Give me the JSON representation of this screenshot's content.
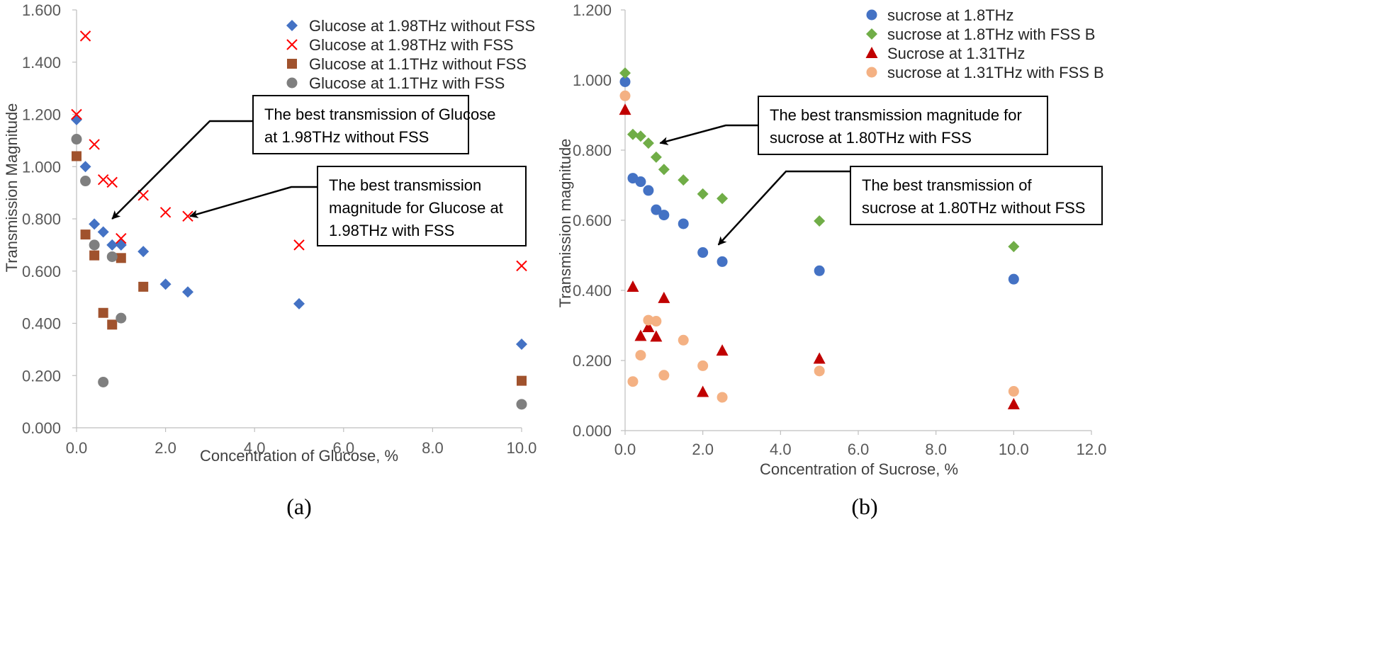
{
  "chart_data": [
    {
      "type": "scatter",
      "panel": "(a)",
      "xlabel": "Concentration of Glucose, %",
      "ylabel": "Transmission Magnitude",
      "xlim": [
        0,
        10
      ],
      "ylim": [
        0,
        1.6
      ],
      "x_ticks": [
        "0.0",
        "2.0",
        "4.0",
        "6.0",
        "8.0",
        "10.0"
      ],
      "y_ticks": [
        "0.000",
        "0.200",
        "0.400",
        "0.600",
        "0.800",
        "1.000",
        "1.200",
        "1.400",
        "1.600"
      ],
      "legend_position": "top-right",
      "series": [
        {
          "name": "Glucose at 1.98THz without FSS",
          "marker": "diamond",
          "color": "#4472c4",
          "points": [
            [
              0,
              1.18
            ],
            [
              0.2,
              1.0
            ],
            [
              0.4,
              0.78
            ],
            [
              0.6,
              0.75
            ],
            [
              0.8,
              0.7
            ],
            [
              1.0,
              0.7
            ],
            [
              1.5,
              0.675
            ],
            [
              2.0,
              0.55
            ],
            [
              2.5,
              0.52
            ],
            [
              5.0,
              0.475
            ],
            [
              10.0,
              0.32
            ]
          ]
        },
        {
          "name": "Glucose at 1.98THz with FSS",
          "marker": "x",
          "color": "#ff0000",
          "points": [
            [
              0,
              1.2
            ],
            [
              0.2,
              1.5
            ],
            [
              0.4,
              1.085
            ],
            [
              0.6,
              0.95
            ],
            [
              0.8,
              0.94
            ],
            [
              1.0,
              0.725
            ],
            [
              1.5,
              0.89
            ],
            [
              2.0,
              0.825
            ],
            [
              2.5,
              0.81
            ],
            [
              5.0,
              0.7
            ],
            [
              10.0,
              0.62
            ]
          ]
        },
        {
          "name": "Glucose at 1.1THz without FSS",
          "marker": "square",
          "color": "#a0522d",
          "points": [
            [
              0,
              1.04
            ],
            [
              0.2,
              0.74
            ],
            [
              0.4,
              0.66
            ],
            [
              0.6,
              0.44
            ],
            [
              0.8,
              0.395
            ],
            [
              1.0,
              0.65
            ],
            [
              1.5,
              0.54
            ],
            [
              10.0,
              0.18
            ]
          ]
        },
        {
          "name": "Glucose at 1.1THz with FSS",
          "marker": "circle",
          "color": "#7f7f7f",
          "points": [
            [
              0,
              1.105
            ],
            [
              0.2,
              0.945
            ],
            [
              0.4,
              0.7
            ],
            [
              0.6,
              0.175
            ],
            [
              0.8,
              0.655
            ],
            [
              1.0,
              0.42
            ],
            [
              10.0,
              0.09
            ]
          ]
        }
      ],
      "annotations": [
        {
          "lines": [
            "The best transmission of Glucose",
            "at 1.98THz without FSS"
          ],
          "arrow_to": [
            0.8,
            0.8
          ]
        },
        {
          "lines": [
            "The best transmission",
            "magnitude for Glucose at",
            "1.98THz with FSS"
          ],
          "arrow_to": [
            2.55,
            0.81
          ]
        }
      ],
      "caption": "(a)"
    },
    {
      "type": "scatter",
      "panel": "(b)",
      "xlabel": "Concentration of Sucrose, %",
      "ylabel": "Transmission magnitude",
      "xlim": [
        0,
        12
      ],
      "ylim": [
        0,
        1.2
      ],
      "x_ticks": [
        "0.0",
        "2.0",
        "4.0",
        "6.0",
        "8.0",
        "10.0",
        "12.0"
      ],
      "y_ticks": [
        "0.000",
        "0.200",
        "0.400",
        "0.600",
        "0.800",
        "1.000",
        "1.200"
      ],
      "legend_position": "top-right",
      "series": [
        {
          "name": "sucrose at 1.8THz",
          "marker": "circle",
          "color": "#4472c4",
          "points": [
            [
              0,
              0.995
            ],
            [
              0.2,
              0.72
            ],
            [
              0.4,
              0.71
            ],
            [
              0.6,
              0.685
            ],
            [
              0.8,
              0.63
            ],
            [
              1.0,
              0.615
            ],
            [
              1.5,
              0.59
            ],
            [
              2.0,
              0.508
            ],
            [
              2.5,
              0.482
            ],
            [
              5.0,
              0.456
            ],
            [
              10.0,
              0.432
            ]
          ]
        },
        {
          "name": "sucrose at 1.8THz with FSS B",
          "marker": "diamond",
          "color": "#70ad47",
          "points": [
            [
              0,
              1.02
            ],
            [
              0.2,
              0.845
            ],
            [
              0.4,
              0.84
            ],
            [
              0.6,
              0.82
            ],
            [
              0.8,
              0.78
            ],
            [
              1.0,
              0.745
            ],
            [
              1.5,
              0.715
            ],
            [
              2.0,
              0.675
            ],
            [
              2.5,
              0.662
            ],
            [
              5.0,
              0.598
            ],
            [
              10.0,
              0.525
            ]
          ]
        },
        {
          "name": "Sucrose at 1.31THz",
          "marker": "triangle",
          "color": "#c00000",
          "points": [
            [
              0,
              0.915
            ],
            [
              0.2,
              0.41
            ],
            [
              0.4,
              0.27
            ],
            [
              0.6,
              0.295
            ],
            [
              0.8,
              0.268
            ],
            [
              1.0,
              0.378
            ],
            [
              2.0,
              0.11
            ],
            [
              2.5,
              0.228
            ],
            [
              5.0,
              0.205
            ],
            [
              10.0,
              0.075
            ]
          ]
        },
        {
          "name": "sucrose at 1.31THz with FSS B",
          "marker": "circle",
          "color": "#f4b183",
          "points": [
            [
              0,
              0.955
            ],
            [
              0.2,
              0.14
            ],
            [
              0.4,
              0.215
            ],
            [
              0.6,
              0.315
            ],
            [
              0.8,
              0.312
            ],
            [
              1.0,
              0.158
            ],
            [
              1.5,
              0.258
            ],
            [
              2.0,
              0.185
            ],
            [
              2.5,
              0.095
            ],
            [
              5.0,
              0.17
            ],
            [
              10.0,
              0.112
            ]
          ]
        }
      ],
      "annotations": [
        {
          "lines": [
            "The best transmission magnitude for",
            "sucrose at 1.80THz with FSS"
          ],
          "arrow_to": [
            0.9,
            0.82
          ]
        },
        {
          "lines": [
            "The best transmission of",
            "sucrose at 1.80THz without FSS"
          ],
          "arrow_to": [
            2.4,
            0.53
          ]
        }
      ],
      "caption": "(b)"
    }
  ]
}
